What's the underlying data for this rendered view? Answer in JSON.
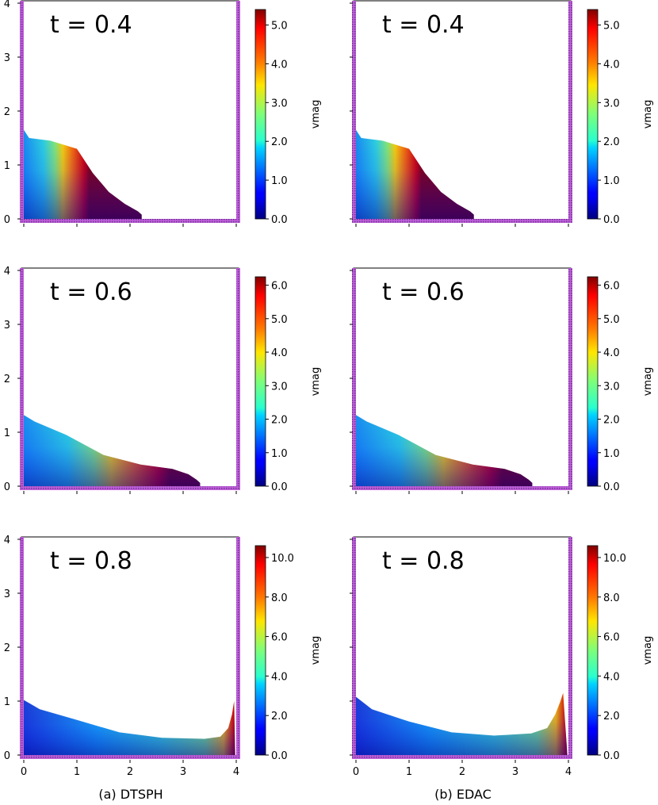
{
  "chart_data": {
    "type": "scatter",
    "description_label": "vmag",
    "columns": [
      {
        "caption": "(a) DTSPH",
        "method": "DTSPH"
      },
      {
        "caption": "(b) EDAC",
        "method": "EDAC"
      }
    ],
    "x_ticks": [
      "0",
      "1",
      "2",
      "3",
      "4"
    ],
    "y_ticks": [
      "0",
      "1",
      "2",
      "3",
      "4"
    ],
    "xlim": [
      0,
      4
    ],
    "ylim": [
      0,
      4
    ],
    "colorbar_label": "vmag",
    "panels": [
      {
        "id": "dtsph-t04",
        "time_label": "t = 0.4",
        "vmax": 5.4,
        "cbar_ticks": [
          "0.0",
          "1.0",
          "2.0",
          "3.0",
          "4.0",
          "5.0"
        ],
        "cbar_tick_values": [
          0,
          1,
          2,
          3,
          4,
          5
        ],
        "surface": [
          [
            0,
            1.65
          ],
          [
            0.1,
            1.5
          ],
          [
            0.5,
            1.45
          ],
          [
            1.0,
            1.3
          ],
          [
            1.3,
            0.85
          ],
          [
            1.6,
            0.5
          ],
          [
            1.9,
            0.28
          ],
          [
            2.15,
            0.14
          ],
          [
            2.22,
            0.08
          ]
        ],
        "front_x": 2.22
      },
      {
        "id": "edac-t04",
        "time_label": "t = 0.4",
        "vmax": 5.4,
        "cbar_ticks": [
          "0.0",
          "1.0",
          "2.0",
          "3.0",
          "4.0",
          "5.0"
        ],
        "cbar_tick_values": [
          0,
          1,
          2,
          3,
          4,
          5
        ],
        "surface": [
          [
            0,
            1.65
          ],
          [
            0.1,
            1.5
          ],
          [
            0.5,
            1.45
          ],
          [
            1.0,
            1.3
          ],
          [
            1.3,
            0.85
          ],
          [
            1.6,
            0.5
          ],
          [
            1.9,
            0.28
          ],
          [
            2.15,
            0.14
          ],
          [
            2.22,
            0.08
          ]
        ],
        "front_x": 2.22
      },
      {
        "id": "dtsph-t06",
        "time_label": "t = 0.6",
        "vmax": 6.25,
        "cbar_ticks": [
          "0.0",
          "1.0",
          "2.0",
          "3.0",
          "4.0",
          "5.0",
          "6.0"
        ],
        "cbar_tick_values": [
          0,
          1,
          2,
          3,
          4,
          5,
          6
        ],
        "surface": [
          [
            0,
            1.32
          ],
          [
            0.2,
            1.2
          ],
          [
            0.8,
            0.95
          ],
          [
            1.5,
            0.58
          ],
          [
            2.2,
            0.4
          ],
          [
            2.8,
            0.32
          ],
          [
            3.1,
            0.22
          ],
          [
            3.25,
            0.12
          ],
          [
            3.32,
            0.06
          ]
        ],
        "front_x": 3.32
      },
      {
        "id": "edac-t06",
        "time_label": "t = 0.6",
        "vmax": 6.25,
        "cbar_ticks": [
          "0.0",
          "1.0",
          "2.0",
          "3.0",
          "4.0",
          "5.0",
          "6.0"
        ],
        "cbar_tick_values": [
          0,
          1,
          2,
          3,
          4,
          5,
          6
        ],
        "surface": [
          [
            0,
            1.32
          ],
          [
            0.2,
            1.2
          ],
          [
            0.8,
            0.95
          ],
          [
            1.5,
            0.58
          ],
          [
            2.2,
            0.4
          ],
          [
            2.8,
            0.32
          ],
          [
            3.1,
            0.22
          ],
          [
            3.25,
            0.12
          ],
          [
            3.32,
            0.06
          ]
        ],
        "front_x": 3.32
      },
      {
        "id": "dtsph-t08",
        "time_label": "t = 0.8",
        "vmax": 10.6,
        "cbar_ticks": [
          "0.0",
          "2.0",
          "4.0",
          "6.0",
          "8.0",
          "10.0"
        ],
        "cbar_tick_values": [
          0,
          2,
          4,
          6,
          8,
          10
        ],
        "surface": [
          [
            0,
            1.02
          ],
          [
            0.3,
            0.85
          ],
          [
            1.0,
            0.65
          ],
          [
            1.8,
            0.42
          ],
          [
            2.6,
            0.32
          ],
          [
            3.4,
            0.3
          ],
          [
            3.7,
            0.34
          ],
          [
            3.85,
            0.5
          ],
          [
            3.92,
            0.75
          ],
          [
            3.96,
            1.0
          ]
        ],
        "front_x": 3.98
      },
      {
        "id": "edac-t08",
        "time_label": "t = 0.8",
        "vmax": 10.6,
        "cbar_ticks": [
          "0.0",
          "2.0",
          "4.0",
          "6.0",
          "8.0",
          "10.0"
        ],
        "cbar_tick_values": [
          0,
          2,
          4,
          6,
          8,
          10
        ],
        "surface": [
          [
            0,
            1.08
          ],
          [
            0.3,
            0.85
          ],
          [
            1.0,
            0.62
          ],
          [
            1.8,
            0.42
          ],
          [
            2.6,
            0.36
          ],
          [
            3.3,
            0.4
          ],
          [
            3.6,
            0.5
          ],
          [
            3.75,
            0.75
          ],
          [
            3.85,
            1.0
          ],
          [
            3.9,
            1.15
          ]
        ],
        "front_x": 3.98
      }
    ]
  }
}
